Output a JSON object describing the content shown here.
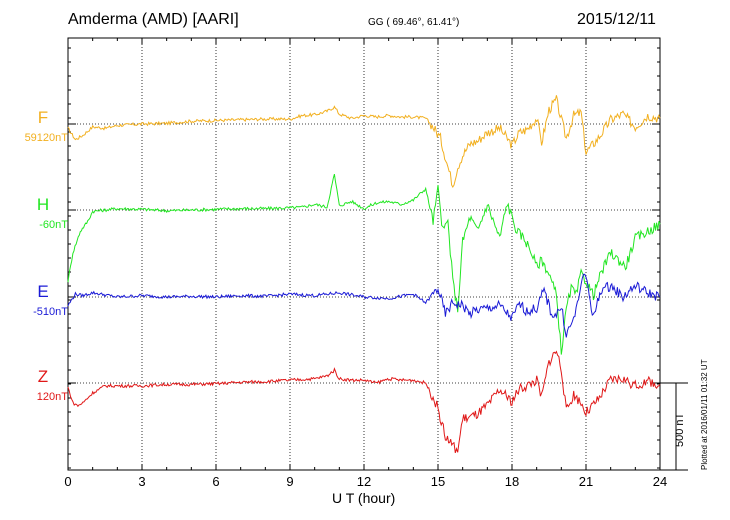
{
  "header": {
    "station": "Amderma (AMD)  [AARI]",
    "coords": "GG ( 69.46°,  61.41°)",
    "date": "2015/12/11"
  },
  "footer": {
    "plotted": "Plotted at 2016/01/11 01:32 UT",
    "scale_label": "500 nT"
  },
  "chart_data": {
    "type": "line",
    "title": "Amderma (AMD)  [AARI]",
    "xlabel": "U T (hour)",
    "ylabel": "",
    "xlim": [
      0,
      24
    ],
    "xticks": [
      0,
      3,
      6,
      9,
      12,
      15,
      18,
      21,
      24
    ],
    "tick_labels": [
      "0",
      "3",
      "6",
      "9",
      "12",
      "15",
      "18",
      "21",
      "24"
    ],
    "grid": true,
    "scale_bar_nT": 500,
    "series": [
      {
        "name": "F",
        "baseline_label": "59120nT",
        "color": "#f2b020",
        "x": [
          0,
          0.3,
          0.6,
          1,
          1.5,
          2,
          3,
          4,
          5,
          6,
          7,
          8,
          9,
          9.5,
          10,
          10.5,
          10.8,
          11,
          11.5,
          12,
          12.5,
          13,
          13.5,
          14,
          14.5,
          14.8,
          15.1,
          15.4,
          15.6,
          15.8,
          16,
          16.3,
          16.6,
          17,
          17.5,
          18,
          18.3,
          18.6,
          19,
          19.2,
          19.5,
          19.8,
          20,
          20.2,
          20.5,
          20.8,
          21,
          21.5,
          22,
          22.5,
          23,
          23.5,
          24
        ],
        "y": [
          -30,
          -110,
          -80,
          -20,
          -30,
          -10,
          0,
          5,
          20,
          25,
          30,
          35,
          35,
          60,
          65,
          90,
          120,
          70,
          40,
          60,
          50,
          60,
          50,
          50,
          40,
          -20,
          -100,
          -300,
          -430,
          -300,
          -220,
          -140,
          -120,
          -60,
          -30,
          -150,
          -60,
          -40,
          40,
          -130,
          100,
          170,
          30,
          -100,
          60,
          80,
          -200,
          -100,
          30,
          70,
          -20,
          60,
          40
        ]
      },
      {
        "name": "H",
        "baseline_label": "-60nT",
        "color": "#22e622",
        "x": [
          0,
          0.2,
          0.5,
          0.8,
          1,
          2,
          3,
          4,
          5,
          6,
          7,
          8,
          9,
          9.5,
          10,
          10.5,
          10.8,
          11,
          11.5,
          12,
          12.5,
          13,
          13.5,
          14,
          14.5,
          14.8,
          15,
          15.2,
          15.4,
          15.6,
          15.8,
          16,
          16.3,
          16.6,
          17,
          17.5,
          17.8,
          18,
          18.2,
          18.5,
          18.8,
          19,
          19.2,
          19.5,
          19.8,
          20,
          20.2,
          20.4,
          20.6,
          20.8,
          21,
          21.3,
          21.6,
          22,
          22.3,
          22.6,
          23,
          23.5,
          24
        ],
        "y": [
          -500,
          -300,
          -150,
          -80,
          -10,
          10,
          5,
          -5,
          0,
          5,
          10,
          10,
          15,
          20,
          40,
          20,
          250,
          30,
          60,
          10,
          50,
          60,
          40,
          70,
          150,
          -80,
          150,
          -150,
          -80,
          -500,
          -700,
          -220,
          -50,
          -150,
          40,
          -200,
          50,
          -50,
          -150,
          -200,
          -300,
          -400,
          -350,
          -450,
          -600,
          -1000,
          -700,
          -550,
          -600,
          -450,
          -500,
          -600,
          -450,
          -300,
          -350,
          -400,
          -200,
          -150,
          -100
        ]
      },
      {
        "name": "E",
        "baseline_label": "-510nT",
        "color": "#1a1ad6",
        "x": [
          0,
          0.3,
          0.6,
          1,
          2,
          3,
          4,
          5,
          6,
          7,
          8,
          9,
          10,
          11,
          12,
          13,
          14,
          14.5,
          15,
          15.3,
          15.6,
          16,
          16.3,
          16.6,
          17,
          17.5,
          18,
          18.3,
          18.6,
          19,
          19.3,
          19.6,
          19.8,
          20,
          20.2,
          20.4,
          20.6,
          20.8,
          21,
          21.3,
          21.6,
          22,
          22.5,
          23,
          23.5,
          24
        ],
        "y": [
          -60,
          20,
          10,
          30,
          0,
          10,
          0,
          5,
          0,
          10,
          5,
          20,
          10,
          30,
          0,
          -10,
          20,
          -40,
          60,
          -120,
          -40,
          -60,
          -120,
          -90,
          -80,
          -60,
          -150,
          -50,
          -100,
          -80,
          50,
          -120,
          -120,
          -70,
          -260,
          -200,
          -100,
          100,
          150,
          -150,
          50,
          80,
          0,
          80,
          30,
          0
        ]
      },
      {
        "name": "Z",
        "baseline_label": "120nT",
        "color": "#e01818",
        "x": [
          0,
          0.2,
          0.4,
          0.6,
          1,
          1.5,
          2,
          3,
          4,
          5,
          6,
          7,
          8,
          9,
          10,
          10.5,
          10.8,
          11,
          11.5,
          12,
          12.5,
          13,
          13.5,
          14,
          14.5,
          14.8,
          15,
          15.3,
          15.6,
          15.8,
          16,
          16.3,
          16.6,
          17,
          17.5,
          18,
          18.3,
          18.6,
          19,
          19.2,
          19.5,
          19.8,
          20,
          20.2,
          20.5,
          20.8,
          21,
          21.5,
          22,
          22.5,
          23,
          23.5,
          24
        ],
        "y": [
          -30,
          -140,
          -160,
          -140,
          -70,
          -20,
          -20,
          -20,
          -10,
          -10,
          -5,
          5,
          10,
          20,
          30,
          50,
          90,
          30,
          20,
          20,
          0,
          30,
          20,
          20,
          0,
          -100,
          -180,
          -380,
          -440,
          -480,
          -250,
          -240,
          -220,
          -160,
          -50,
          -130,
          -40,
          -20,
          20,
          -100,
          150,
          230,
          100,
          -200,
          -80,
          -140,
          -210,
          -120,
          20,
          30,
          -20,
          10,
          -10
        ]
      }
    ]
  }
}
